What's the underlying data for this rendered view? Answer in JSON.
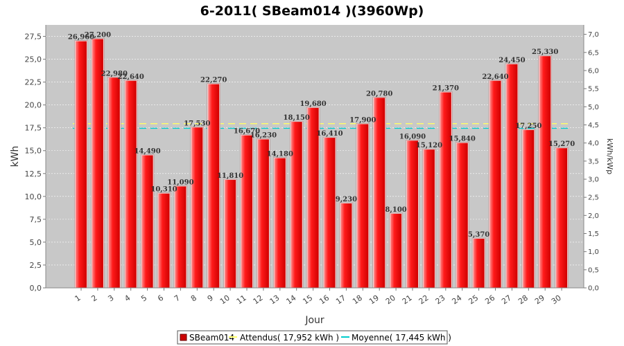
{
  "chart_data": {
    "type": "bar",
    "title": "6-2011( SBeam014 )(3960Wp)",
    "xlabel": "Jour",
    "ylabel": "kWh",
    "y2label": "kWh/kWp",
    "ylim": [
      0,
      28.75
    ],
    "y2lim": [
      0,
      7.26
    ],
    "yticks": [
      "0,0",
      "2,5",
      "5,0",
      "7,5",
      "10,0",
      "12,5",
      "15,0",
      "17,5",
      "20,0",
      "22,5",
      "25,0",
      "27,5"
    ],
    "y2ticks": [
      "0,0",
      "0,5",
      "1,0",
      "1,5",
      "2,0",
      "2,5",
      "3,0",
      "3,5",
      "4,0",
      "4,5",
      "5,0",
      "5,5",
      "6,0",
      "6,5",
      "7,0"
    ],
    "categories": [
      "1",
      "2",
      "3",
      "4",
      "5",
      "6",
      "7",
      "8",
      "9",
      "10",
      "11",
      "12",
      "13",
      "14",
      "15",
      "16",
      "17",
      "18",
      "19",
      "20",
      "21",
      "22",
      "23",
      "24",
      "25",
      "26",
      "27",
      "28",
      "29",
      "30"
    ],
    "series": [
      {
        "name": "SBeam014",
        "color": "#ff0000",
        "values": [
          26.96,
          27.2,
          22.98,
          22.64,
          14.49,
          10.31,
          11.09,
          17.53,
          22.27,
          11.81,
          16.67,
          16.23,
          14.18,
          18.15,
          19.68,
          16.41,
          9.23,
          17.9,
          20.78,
          8.1,
          16.09,
          15.12,
          21.37,
          15.84,
          5.37,
          22.64,
          24.45,
          17.25,
          25.33,
          15.27
        ],
        "labels": [
          "26,960",
          "27,200",
          "22,980",
          "22,640",
          "14,490",
          "10,310",
          "11,090",
          "17,530",
          "22,270",
          "11,810",
          "16,670",
          "16,230",
          "14,180",
          "18,150",
          "19,680",
          "16,410",
          "9,230",
          "17,900",
          "20,780",
          "8,100",
          "16,090",
          "15,120",
          "21,370",
          "15,840",
          "5,370",
          "22,640",
          "24,450",
          "17,250",
          "25,330",
          "15,270"
        ]
      }
    ],
    "reference_lines": [
      {
        "name": "Attendus( 17,952 kWh )",
        "value": 17.952,
        "color": "#ffff66"
      },
      {
        "name": "Moyenne( 17,445 kWh )",
        "value": 17.445,
        "color": "#00cccc"
      }
    ],
    "legend_position": "bottom",
    "grid": true
  }
}
